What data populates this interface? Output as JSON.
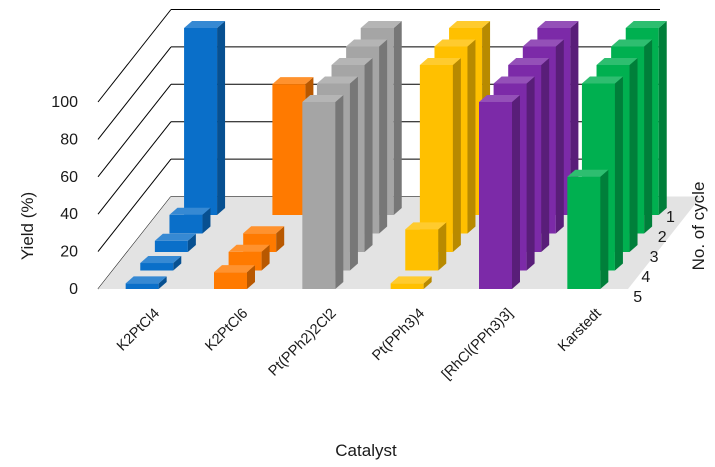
{
  "chart_data": {
    "type": "bar",
    "subtype": "3d-column",
    "title": "",
    "xlabel": "Catalyst",
    "ylabel": "Yield (%)",
    "depth_label": "No. of cycle",
    "ylim": [
      0,
      100
    ],
    "yticks": [
      "0",
      "20",
      "40",
      "60",
      "80",
      "100"
    ],
    "grid": true,
    "categories": [
      "K2PtCl4",
      "K2PtCl6",
      "Pt(PPh2)2Cl2",
      "Pt(PPh3)4",
      "[RhCl(PPh3)3]",
      "Karstedt"
    ],
    "series": [
      {
        "name": "1",
        "values": [
          100,
          70,
          100,
          100,
          100,
          100
        ]
      },
      {
        "name": "2",
        "values": [
          10,
          0,
          100,
          100,
          100,
          100
        ]
      },
      {
        "name": "3",
        "values": [
          6,
          10,
          100,
          100,
          100,
          100
        ]
      },
      {
        "name": "4",
        "values": [
          4,
          10,
          100,
          22,
          100,
          100
        ]
      },
      {
        "name": "5",
        "values": [
          3,
          9,
          100,
          3,
          100,
          60
        ]
      }
    ],
    "colors": {
      "K2PtCl4": "#0a6fc9",
      "K2PtCl6": "#ff7a00",
      "Pt(PPh2)2Cl2": "#a5a5a5",
      "Pt(PPh3)4": "#ffc000",
      "[RhCl(PPh3)3]": "#7c2aa8",
      "Karstedt": "#00b050"
    }
  }
}
